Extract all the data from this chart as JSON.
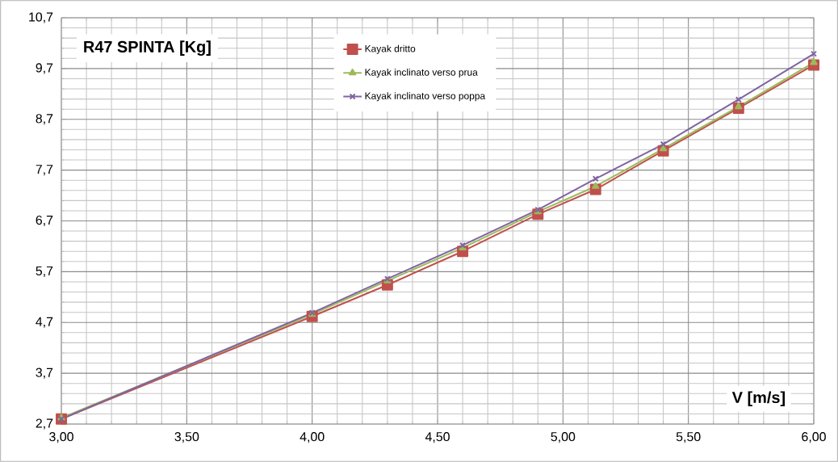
{
  "chart_data": {
    "type": "line",
    "ylabel": "R47 SPINTA [Kg]",
    "xlabel": "V [m/s]",
    "x": [
      3.0,
      4.0,
      4.3,
      4.6,
      4.9,
      5.13,
      5.4,
      5.7,
      6.0
    ],
    "series": [
      {
        "name": "Kayak dritto",
        "color": "#c0504d",
        "marker": "square",
        "values": [
          2.8,
          4.82,
          5.44,
          6.1,
          6.83,
          7.32,
          8.08,
          8.92,
          9.77
        ]
      },
      {
        "name": "Kayak  inclinato verso prua",
        "color": "#9bbb59",
        "marker": "triangle",
        "values": [
          2.82,
          4.86,
          5.52,
          6.17,
          6.88,
          7.38,
          8.12,
          8.95,
          9.82
        ]
      },
      {
        "name": "Kayak inclinato verso poppa",
        "color": "#8064a2",
        "marker": "cross",
        "values": [
          2.8,
          4.89,
          5.56,
          6.22,
          6.92,
          7.53,
          8.21,
          9.09,
          9.99
        ]
      }
    ],
    "xlim": [
      3.0,
      6.0
    ],
    "xticks": [
      {
        "value": 3.0,
        "label": "3,00"
      },
      {
        "value": 3.5,
        "label": "3,50"
      },
      {
        "value": 4.0,
        "label": "4,00"
      },
      {
        "value": 4.5,
        "label": "4,50"
      },
      {
        "value": 5.0,
        "label": "5,00"
      },
      {
        "value": 5.5,
        "label": "5,50"
      },
      {
        "value": 6.0,
        "label": "6,00"
      }
    ],
    "ylim": [
      2.7,
      10.7
    ],
    "yticks": [
      {
        "value": 2.7,
        "label": "2,7"
      },
      {
        "value": 3.7,
        "label": "3,7"
      },
      {
        "value": 4.7,
        "label": "4,7"
      },
      {
        "value": 5.7,
        "label": "5,7"
      },
      {
        "value": 6.7,
        "label": "6,7"
      },
      {
        "value": 7.7,
        "label": "7,7"
      },
      {
        "value": 8.7,
        "label": "8,7"
      },
      {
        "value": 9.7,
        "label": "9,7"
      },
      {
        "value": 10.7,
        "label": "10,7"
      }
    ],
    "grid": true,
    "legend": "top",
    "line_style": "solid"
  }
}
